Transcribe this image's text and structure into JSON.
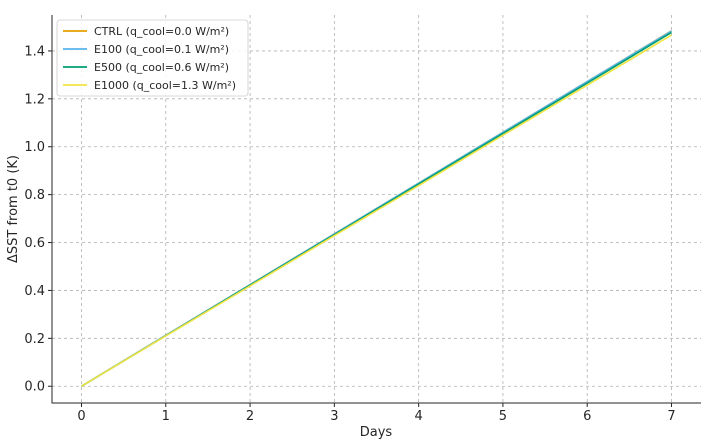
{
  "chart_data": {
    "type": "line",
    "title": "",
    "xlabel": "Days",
    "ylabel": "ΔSST from t0 (K)",
    "xlim": [
      -0.35,
      7.35
    ],
    "ylim": [
      -0.07,
      1.55
    ],
    "xticks": [
      0,
      1,
      2,
      3,
      4,
      5,
      6,
      7
    ],
    "xtick_labels": [
      "0",
      "1",
      "2",
      "3",
      "4",
      "5",
      "6",
      "7"
    ],
    "yticks": [
      0.0,
      0.2,
      0.4,
      0.6,
      0.8,
      1.0,
      1.2,
      1.4
    ],
    "ytick_labels": [
      "0.0",
      "0.2",
      "0.4",
      "0.6",
      "0.8",
      "1.0",
      "1.2",
      "1.4"
    ],
    "grid": true,
    "legend_position": "top-left",
    "x": [
      0,
      1,
      2,
      3,
      4,
      5,
      6,
      7
    ],
    "series": [
      {
        "name": "CTRL (q_cool=0.0 W/m²)",
        "color": "#e69f00",
        "values": [
          0.0,
          0.212,
          0.424,
          0.636,
          0.848,
          1.06,
          1.272,
          1.484
        ]
      },
      {
        "name": "E100 (q_cool=0.1 W/m²)",
        "color": "#56b4e9",
        "values": [
          0.0,
          0.212,
          0.424,
          0.636,
          0.848,
          1.06,
          1.272,
          1.483
        ]
      },
      {
        "name": "E500 (q_cool=0.6 W/m²)",
        "color": "#009e73",
        "values": [
          0.0,
          0.211,
          0.422,
          0.633,
          0.844,
          1.055,
          1.266,
          1.477
        ]
      },
      {
        "name": "E1000 (q_cool=1.3 W/m²)",
        "color": "#f0e442",
        "values": [
          0.0,
          0.21,
          0.419,
          0.629,
          0.838,
          1.048,
          1.257,
          1.466
        ]
      }
    ]
  }
}
